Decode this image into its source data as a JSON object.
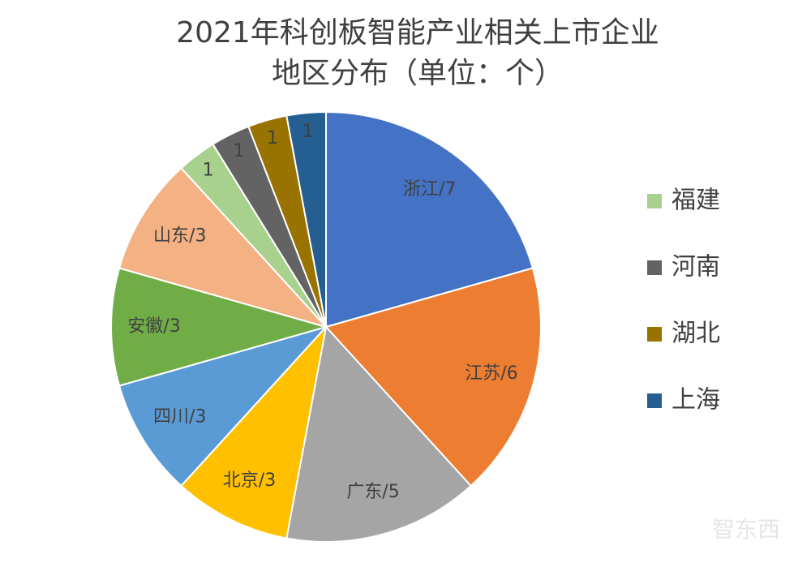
{
  "chart_data": {
    "type": "pie",
    "title": [
      "2021年科创板智能产业相关上市企业",
      "地区分布（单位：个）"
    ],
    "categories": [
      "浙江",
      "江苏",
      "广东",
      "北京",
      "四川",
      "安徽",
      "山东",
      "福建",
      "河南",
      "湖北",
      "上海"
    ],
    "values": [
      7,
      6,
      5,
      3,
      3,
      3,
      3,
      1,
      1,
      1,
      1
    ],
    "value_labels": [
      "浙江/7",
      "江苏/6",
      "广东/5",
      "北京/3",
      "四川/3",
      "安徽/3",
      "山东/3",
      "1",
      "1",
      "1",
      "1"
    ],
    "colors": [
      "#4472c4",
      "#ed7d31",
      "#a5a5a5",
      "#ffc000",
      "#5b9bd5",
      "#70ad47",
      "#f4b183",
      "#a9d18e",
      "#636363",
      "#997300",
      "#255e91"
    ],
    "legend": {
      "position": "right",
      "items": [
        "福建",
        "河南",
        "湖北",
        "上海"
      ]
    },
    "watermark": "智东西"
  }
}
